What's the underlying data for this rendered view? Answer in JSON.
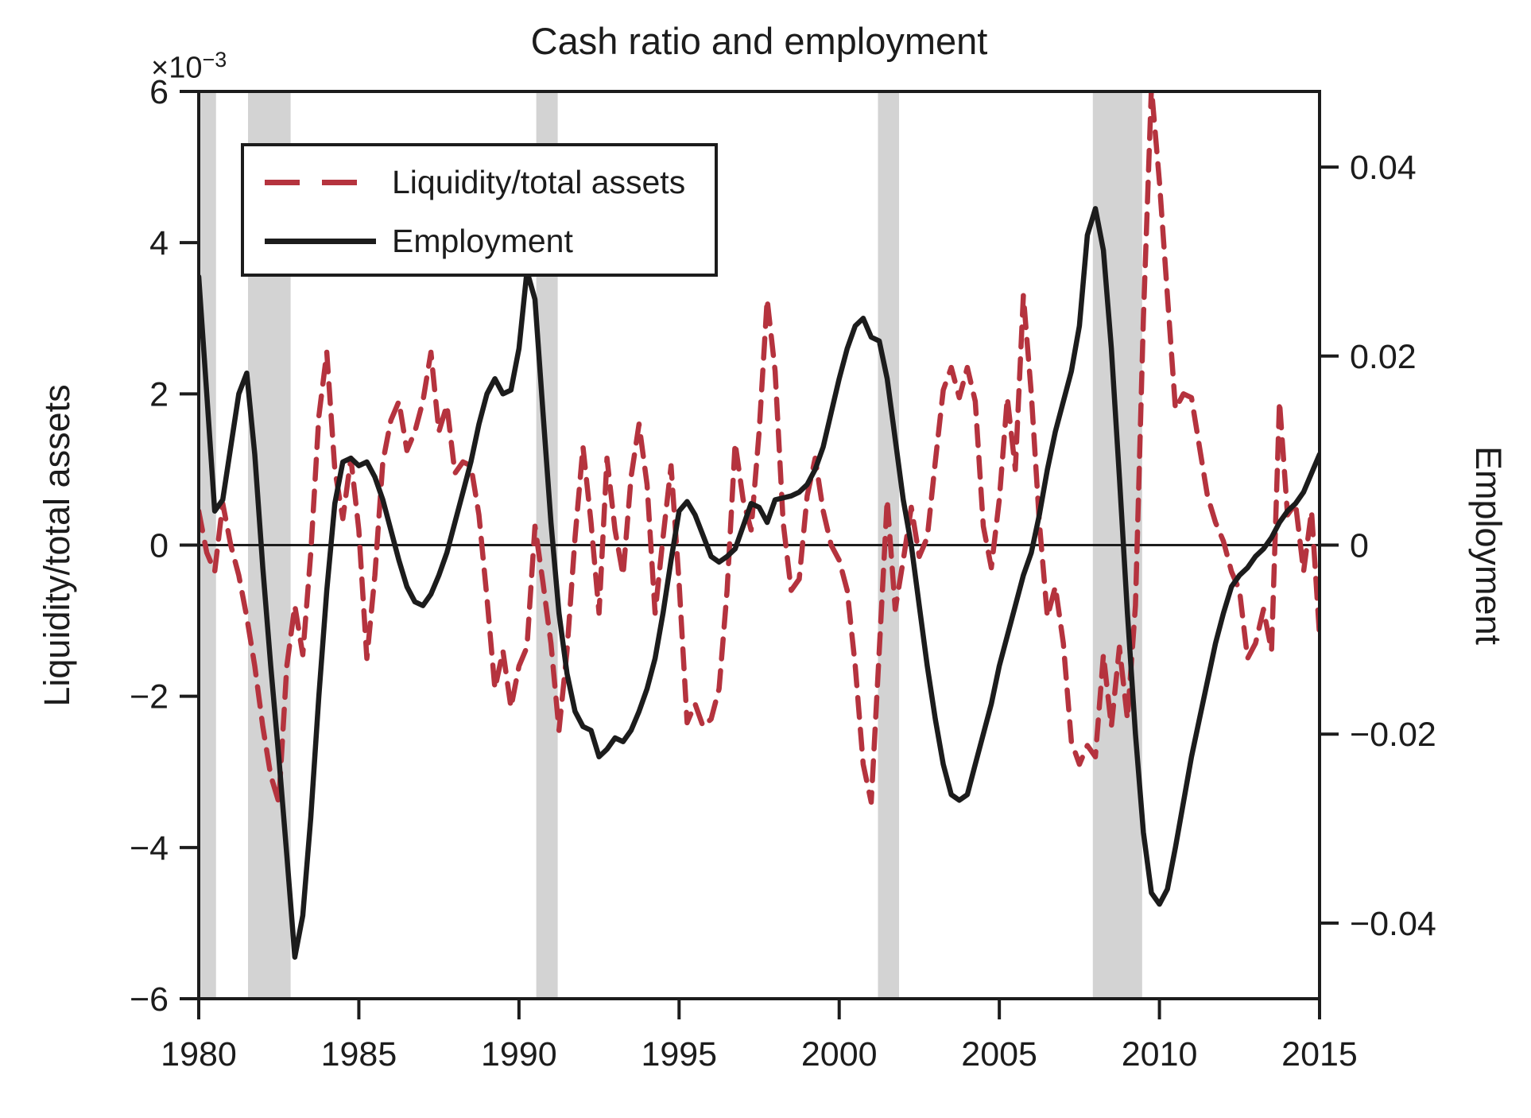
{
  "figure": {
    "title": "Cash ratio and employment",
    "background_color": "#ffffff",
    "frame_color": "#1c1c1c"
  },
  "legend": {
    "items": [
      {
        "label": "Liquidity/total assets",
        "color": "#b5333e",
        "style": "dashed"
      },
      {
        "label": "Employment",
        "color": "#1c1c1c",
        "style": "solid"
      }
    ]
  },
  "axes": {
    "x": {
      "range": [
        1980,
        2015
      ],
      "ticks": [
        1980,
        1985,
        1990,
        1995,
        2000,
        2005,
        2010,
        2015
      ],
      "tick_labels": [
        "1980",
        "1985",
        "1990",
        "1995",
        "2000",
        "2005",
        "2010",
        "2015"
      ]
    },
    "left": {
      "label": "Liquidity/total assets",
      "exponent_base": "×10",
      "exponent_power": "−3",
      "units": "×10⁻³",
      "range": [
        -6,
        6
      ],
      "ticks": [
        6,
        4,
        2,
        0,
        -2,
        -4,
        -6
      ],
      "tick_labels": [
        "6",
        "4",
        "2",
        "0",
        "−2",
        "−4",
        "−6"
      ]
    },
    "right": {
      "label": "Employment",
      "range": [
        -0.048,
        0.048
      ],
      "ticks": [
        0.04,
        0.02,
        0,
        -0.02,
        -0.04
      ],
      "tick_labels": [
        "0.04",
        "0.02",
        "0",
        "−0.02",
        "−0.04"
      ]
    }
  },
  "chart_data": {
    "type": "line",
    "title": "Cash ratio and employment",
    "x_start": 1980,
    "x_step": 0.25,
    "x_range": [
      1980,
      2015
    ],
    "grid": false,
    "zero_line": true,
    "legend_position": "upper-left",
    "band_color": "#d3d3d3",
    "recession_bands": [
      [
        1980.04,
        1980.54
      ],
      [
        1981.54,
        1982.87
      ],
      [
        1990.54,
        1991.21
      ],
      [
        2001.21,
        2001.87
      ],
      [
        2007.92,
        2009.46
      ]
    ],
    "series": [
      {
        "name": "Liquidity/total assets",
        "axis": "left",
        "units": "×10⁻³",
        "color": "#b5333e",
        "dash": true,
        "values": [
          0.45,
          -0.1,
          -0.35,
          0.55,
          0.0,
          -0.4,
          -0.95,
          -1.6,
          -2.4,
          -3.05,
          -3.4,
          -1.6,
          -0.8,
          -1.45,
          -0.1,
          1.7,
          2.55,
          1.0,
          0.35,
          1.15,
          0.2,
          -1.5,
          -0.4,
          1.1,
          1.65,
          1.9,
          1.25,
          1.5,
          1.9,
          2.55,
          1.5,
          1.85,
          0.95,
          1.1,
          1.05,
          0.4,
          -0.7,
          -1.9,
          -1.4,
          -2.15,
          -1.6,
          -1.35,
          0.25,
          -0.5,
          -1.3,
          -2.45,
          -1.4,
          0.1,
          1.3,
          0.3,
          -0.9,
          1.15,
          0.2,
          -0.4,
          0.9,
          1.6,
          0.8,
          -0.9,
          0.1,
          1.05,
          -0.5,
          -2.35,
          -2.1,
          -2.4,
          -2.3,
          -1.9,
          -0.6,
          1.35,
          0.6,
          0.2,
          1.5,
          3.25,
          2.3,
          0.3,
          -0.6,
          -0.45,
          0.65,
          1.15,
          0.45,
          0.0,
          -0.2,
          -0.6,
          -1.6,
          -2.9,
          -3.4,
          -1.4,
          0.6,
          -0.85,
          -0.2,
          0.5,
          -0.15,
          0.1,
          1.1,
          2.05,
          2.35,
          1.95,
          2.35,
          1.9,
          0.25,
          -0.3,
          0.6,
          1.95,
          1.0,
          3.3,
          2.0,
          0.3,
          -0.95,
          -0.55,
          -1.3,
          -2.6,
          -2.9,
          -2.65,
          -2.8,
          -1.45,
          -2.4,
          -1.35,
          -2.3,
          -0.8,
          3.0,
          6.05,
          4.8,
          3.3,
          1.8,
          2.0,
          1.95,
          1.3,
          0.65,
          0.3,
          0.05,
          -0.35,
          -0.6,
          -1.5,
          -1.3,
          -0.85,
          -1.4,
          1.9,
          0.4,
          0.55,
          -0.35,
          0.45,
          -1.2
        ]
      },
      {
        "name": "Employment",
        "axis": "right",
        "units": "",
        "color": "#1c1c1c",
        "dash": false,
        "values": [
          0.0284,
          0.016,
          0.0036,
          0.0048,
          0.0104,
          0.016,
          0.0182,
          0.0096,
          -0.0024,
          -0.0128,
          -0.0224,
          -0.0328,
          -0.0436,
          -0.0392,
          -0.0288,
          -0.016,
          -0.0048,
          0.0044,
          0.0088,
          0.0092,
          0.0084,
          0.0088,
          0.0072,
          0.0048,
          0.0016,
          -0.0016,
          -0.0044,
          -0.006,
          -0.0064,
          -0.0052,
          -0.0032,
          -0.0008,
          0.0024,
          0.0056,
          0.0088,
          0.0128,
          0.016,
          0.0176,
          0.016,
          0.0164,
          0.0208,
          0.029,
          0.026,
          0.014,
          0.0024,
          -0.0072,
          -0.0136,
          -0.0176,
          -0.0192,
          -0.0196,
          -0.0224,
          -0.0216,
          -0.0204,
          -0.0208,
          -0.0196,
          -0.0176,
          -0.0152,
          -0.012,
          -0.0072,
          -0.0016,
          0.0036,
          0.0046,
          0.0032,
          0.001,
          -0.0012,
          -0.0018,
          -0.0012,
          -0.0004,
          0.002,
          0.0044,
          0.004,
          0.0024,
          0.0048,
          0.005,
          0.0052,
          0.0056,
          0.0064,
          0.008,
          0.0104,
          0.014,
          0.0176,
          0.0208,
          0.0232,
          0.024,
          0.022,
          0.0216,
          0.0176,
          0.0112,
          0.0048,
          0.0,
          -0.0064,
          -0.0128,
          -0.0184,
          -0.0232,
          -0.0264,
          -0.027,
          -0.0264,
          -0.0232,
          -0.02,
          -0.0168,
          -0.0128,
          -0.0096,
          -0.0064,
          -0.0032,
          -0.0008,
          0.0032,
          0.008,
          0.012,
          0.0152,
          0.0184,
          0.0232,
          0.0328,
          0.0356,
          0.0312,
          0.0208,
          0.0072,
          -0.0072,
          -0.02,
          -0.0304,
          -0.0368,
          -0.038,
          -0.0364,
          -0.032,
          -0.0272,
          -0.0224,
          -0.0184,
          -0.0144,
          -0.0104,
          -0.0072,
          -0.0044,
          -0.0032,
          -0.0024,
          -0.0012,
          -0.0004,
          0.0008,
          0.0024,
          0.0036,
          0.0044,
          0.0056,
          0.0076,
          0.0096
        ]
      }
    ]
  }
}
